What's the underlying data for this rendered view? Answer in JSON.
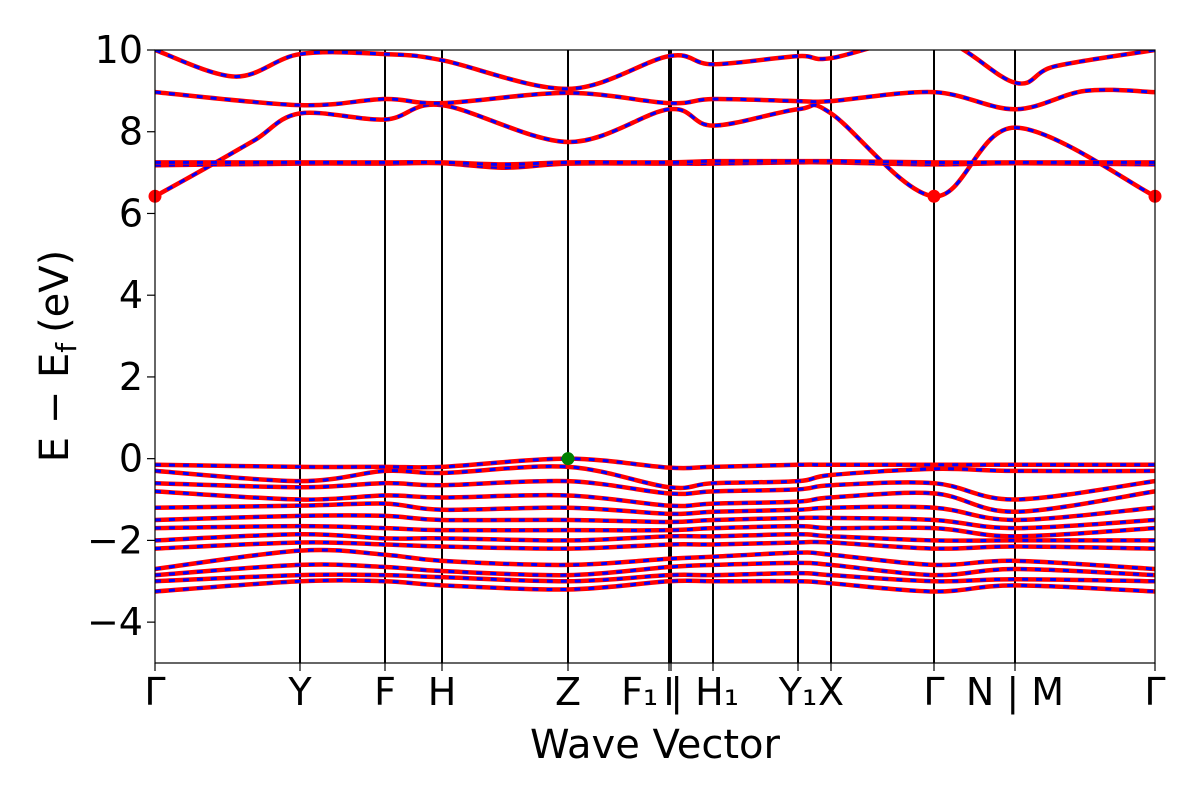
{
  "chart_data": {
    "type": "line",
    "title": "",
    "xlabel": "Wave Vector",
    "ylabel": "E − E_f (eV)",
    "ylabel_main": "E − E",
    "ylabel_sub": "f",
    "ylabel_unit": "(eV)",
    "ylim": [
      -5,
      10
    ],
    "grid": false,
    "legend": "none",
    "yticks": [
      -4,
      -2,
      0,
      2,
      4,
      6,
      8,
      10
    ],
    "ytick_labels": [
      "−4",
      "−2",
      "0",
      "2",
      "4",
      "6",
      "8",
      "10"
    ],
    "kpoints": [
      {
        "x": 0.0,
        "label": "Γ"
      },
      {
        "x": 0.145,
        "label": "Y"
      },
      {
        "x": 0.23,
        "label": "F"
      },
      {
        "x": 0.287,
        "label": "H"
      },
      {
        "x": 0.413,
        "label": "Z"
      },
      {
        "x": 0.514,
        "label": "I"
      },
      {
        "x": 0.516,
        "label": "F₁ | H₁"
      },
      {
        "x": 0.558,
        "label": ""
      },
      {
        "x": 0.643,
        "label": "Y₁"
      },
      {
        "x": 0.676,
        "label": "X"
      },
      {
        "x": 0.779,
        "label": "Γ"
      },
      {
        "x": 0.86,
        "label": "N | M"
      },
      {
        "x": 1.0,
        "label": "Γ"
      }
    ],
    "xtick_labels": [
      {
        "x": 0.0,
        "text": "Γ"
      },
      {
        "x": 0.145,
        "text": "Y"
      },
      {
        "x": 0.23,
        "text": "F"
      },
      {
        "x": 0.287,
        "text": "H"
      },
      {
        "x": 0.413,
        "text": "Z"
      },
      {
        "x": 0.514,
        "text": "I"
      },
      {
        "x": 0.525,
        "text": "F₁ | H₁"
      },
      {
        "x": 0.643,
        "text": "Y₁"
      },
      {
        "x": 0.676,
        "text": "X"
      },
      {
        "x": 0.779,
        "text": "Γ"
      },
      {
        "x": 0.86,
        "text": "N | M"
      },
      {
        "x": 1.0,
        "text": "Γ"
      }
    ],
    "colors": {
      "spin_up": "#ff0000",
      "spin_down": "#0000ff",
      "cbm": "#ff0000",
      "vbm": "#008000",
      "kline": "#000000"
    },
    "series": [
      {
        "group": "conduction",
        "x": [
          0.0,
          0.05,
          0.1,
          0.145,
          0.23,
          0.287,
          0.413,
          0.514,
          0.558,
          0.643,
          0.676,
          0.779,
          0.86,
          1.0
        ],
        "y": [
          6.42,
          7.1,
          7.8,
          8.45,
          8.3,
          8.65,
          7.75,
          8.55,
          8.15,
          8.55,
          8.45,
          6.42,
          8.1,
          6.42
        ]
      },
      {
        "group": "conduction",
        "x": [
          0.0,
          0.145,
          0.23,
          0.287,
          0.35,
          0.413,
          0.514,
          0.558,
          0.643,
          0.676,
          0.779,
          0.86,
          1.0
        ],
        "y": [
          7.18,
          7.22,
          7.22,
          7.23,
          7.12,
          7.22,
          7.22,
          7.22,
          7.25,
          7.25,
          7.2,
          7.23,
          7.2
        ]
      },
      {
        "group": "conduction",
        "x": [
          0.0,
          0.145,
          0.23,
          0.287,
          0.35,
          0.413,
          0.514,
          0.558,
          0.643,
          0.676,
          0.779,
          0.86,
          1.0
        ],
        "y": [
          7.25,
          7.25,
          7.25,
          7.25,
          7.2,
          7.25,
          7.25,
          7.28,
          7.28,
          7.28,
          7.25,
          7.25,
          7.25
        ]
      },
      {
        "group": "conduction",
        "x": [
          0.0,
          0.145,
          0.23,
          0.287,
          0.413,
          0.514,
          0.558,
          0.643,
          0.676,
          0.779,
          0.86,
          0.93,
          1.0
        ],
        "y": [
          8.97,
          8.65,
          8.8,
          8.7,
          8.95,
          8.7,
          8.8,
          8.75,
          8.75,
          8.97,
          8.55,
          9.0,
          8.97
        ]
      },
      {
        "group": "conduction",
        "x": [
          0.0,
          0.08,
          0.145,
          0.23,
          0.287,
          0.413,
          0.514,
          0.558,
          0.643,
          0.676,
          0.779,
          0.86,
          0.9,
          1.0
        ],
        "y": [
          10.0,
          9.35,
          9.9,
          9.9,
          9.75,
          9.05,
          9.85,
          9.65,
          9.85,
          9.8,
          10.3,
          9.2,
          9.6,
          10.0
        ]
      },
      {
        "group": "valence",
        "x": [
          0.0,
          0.145,
          0.23,
          0.287,
          0.413,
          0.514,
          0.558,
          0.643,
          0.676,
          0.779,
          0.86,
          1.0
        ],
        "y": [
          -0.15,
          -0.2,
          -0.2,
          -0.2,
          0.0,
          -0.22,
          -0.2,
          -0.15,
          -0.15,
          -0.15,
          -0.15,
          -0.15
        ]
      },
      {
        "group": "valence",
        "x": [
          0.0,
          0.145,
          0.23,
          0.287,
          0.413,
          0.514,
          0.558,
          0.643,
          0.676,
          0.779,
          0.86,
          1.0
        ],
        "y": [
          -0.3,
          -0.55,
          -0.3,
          -0.35,
          -0.2,
          -0.7,
          -0.6,
          -0.55,
          -0.4,
          -0.25,
          -0.3,
          -0.3
        ]
      },
      {
        "group": "valence",
        "x": [
          0.0,
          0.145,
          0.23,
          0.287,
          0.413,
          0.514,
          0.558,
          0.643,
          0.676,
          0.779,
          0.86,
          1.0
        ],
        "y": [
          -0.6,
          -0.7,
          -0.6,
          -0.65,
          -0.55,
          -0.85,
          -0.8,
          -0.75,
          -0.65,
          -0.6,
          -1.0,
          -0.55
        ]
      },
      {
        "group": "valence",
        "x": [
          0.0,
          0.145,
          0.23,
          0.287,
          0.413,
          0.514,
          0.558,
          0.643,
          0.676,
          0.779,
          0.86,
          1.0
        ],
        "y": [
          -0.8,
          -1.0,
          -0.9,
          -0.95,
          -0.9,
          -1.15,
          -1.1,
          -1.05,
          -0.95,
          -0.85,
          -1.3,
          -0.8
        ]
      },
      {
        "group": "valence",
        "x": [
          0.0,
          0.145,
          0.23,
          0.287,
          0.413,
          0.514,
          0.558,
          0.643,
          0.676,
          0.779,
          0.86,
          1.0
        ],
        "y": [
          -1.2,
          -1.15,
          -1.1,
          -1.25,
          -1.2,
          -1.35,
          -1.3,
          -1.25,
          -1.2,
          -1.2,
          -1.5,
          -1.2
        ]
      },
      {
        "group": "valence",
        "x": [
          0.0,
          0.145,
          0.23,
          0.287,
          0.413,
          0.514,
          0.558,
          0.643,
          0.676,
          0.779,
          0.86,
          1.0
        ],
        "y": [
          -1.5,
          -1.4,
          -1.4,
          -1.5,
          -1.5,
          -1.55,
          -1.5,
          -1.45,
          -1.45,
          -1.5,
          -1.7,
          -1.5
        ]
      },
      {
        "group": "valence",
        "x": [
          0.0,
          0.145,
          0.23,
          0.287,
          0.413,
          0.514,
          0.558,
          0.643,
          0.676,
          0.779,
          0.86,
          1.0
        ],
        "y": [
          -1.7,
          -1.65,
          -1.7,
          -1.75,
          -1.75,
          -1.75,
          -1.7,
          -1.65,
          -1.7,
          -1.7,
          -1.9,
          -1.7
        ]
      },
      {
        "group": "valence",
        "x": [
          0.0,
          0.145,
          0.23,
          0.287,
          0.413,
          0.514,
          0.558,
          0.643,
          0.676,
          0.779,
          0.86,
          1.0
        ],
        "y": [
          -2.0,
          -1.85,
          -1.95,
          -1.95,
          -2.0,
          -1.9,
          -1.9,
          -1.85,
          -1.9,
          -2.0,
          -2.0,
          -2.0
        ]
      },
      {
        "group": "valence",
        "x": [
          0.0,
          0.145,
          0.23,
          0.287,
          0.413,
          0.514,
          0.558,
          0.643,
          0.676,
          0.779,
          0.86,
          1.0
        ],
        "y": [
          -2.2,
          -2.05,
          -2.1,
          -2.15,
          -2.2,
          -2.1,
          -2.1,
          -2.05,
          -2.05,
          -2.2,
          -2.15,
          -2.2
        ]
      },
      {
        "group": "valence",
        "x": [
          0.0,
          0.145,
          0.23,
          0.287,
          0.413,
          0.514,
          0.558,
          0.643,
          0.676,
          0.779,
          0.86,
          1.0
        ],
        "y": [
          -2.7,
          -2.25,
          -2.35,
          -2.5,
          -2.6,
          -2.45,
          -2.4,
          -2.3,
          -2.35,
          -2.6,
          -2.5,
          -2.7
        ]
      },
      {
        "group": "valence",
        "x": [
          0.0,
          0.145,
          0.23,
          0.287,
          0.413,
          0.514,
          0.558,
          0.643,
          0.676,
          0.779,
          0.86,
          1.0
        ],
        "y": [
          -2.85,
          -2.6,
          -2.65,
          -2.75,
          -2.85,
          -2.65,
          -2.6,
          -2.55,
          -2.6,
          -2.85,
          -2.7,
          -2.85
        ]
      },
      {
        "group": "valence",
        "x": [
          0.0,
          0.145,
          0.23,
          0.287,
          0.413,
          0.514,
          0.558,
          0.643,
          0.676,
          0.779,
          0.86,
          1.0
        ],
        "y": [
          -3.0,
          -2.85,
          -2.85,
          -2.9,
          -3.0,
          -2.85,
          -2.85,
          -2.8,
          -2.85,
          -3.0,
          -2.95,
          -3.0
        ]
      },
      {
        "group": "valence",
        "x": [
          0.0,
          0.145,
          0.23,
          0.287,
          0.413,
          0.514,
          0.558,
          0.643,
          0.676,
          0.779,
          0.86,
          1.0
        ],
        "y": [
          -3.25,
          -3.0,
          -3.0,
          -3.1,
          -3.2,
          -3.0,
          -3.0,
          -3.0,
          -3.05,
          -3.25,
          -3.1,
          -3.25
        ]
      }
    ],
    "markers": [
      {
        "kind": "cbm",
        "x": 0.0,
        "y": 6.42
      },
      {
        "kind": "cbm",
        "x": 0.779,
        "y": 6.42
      },
      {
        "kind": "cbm",
        "x": 1.0,
        "y": 6.42
      },
      {
        "kind": "vbm",
        "x": 0.413,
        "y": 0.0
      }
    ]
  }
}
